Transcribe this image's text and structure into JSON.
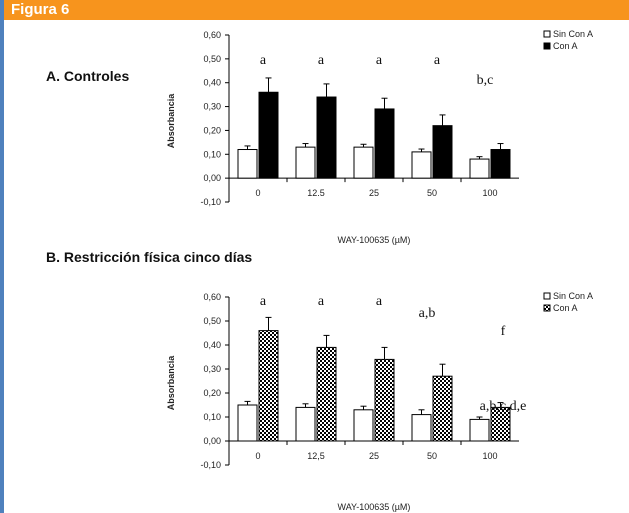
{
  "figure_title": "Figura 6",
  "colors": {
    "header": "#f7941d",
    "frame_border": "#4f81bd",
    "con_a_a": "#000000",
    "con_a_b": "checkerboard",
    "sin_con_a": "#ffffff"
  },
  "chart_data": [
    {
      "type": "bar",
      "title": "A. Controles",
      "xlabel": "WAY-100635 (µM)",
      "ylabel": "Absorbancia",
      "ylim": [
        -0.1,
        0.6
      ],
      "yticks": [
        "-0,10",
        "0,00",
        "0,10",
        "0,20",
        "0,30",
        "0,40",
        "0,50",
        "0,60"
      ],
      "categories": [
        "0",
        "12.5",
        "25",
        "50",
        "100"
      ],
      "series": [
        {
          "name": "Sin Con A",
          "values": [
            0.12,
            0.13,
            0.13,
            0.11,
            0.08
          ],
          "errors": [
            0.015,
            0.015,
            0.012,
            0.012,
            0.01
          ]
        },
        {
          "name": "Con A",
          "values": [
            0.36,
            0.34,
            0.29,
            0.22,
            0.12
          ],
          "errors": [
            0.06,
            0.055,
            0.045,
            0.045,
            0.025
          ]
        }
      ],
      "significance": [
        "a",
        "a",
        "a",
        "a",
        "b,c"
      ],
      "legend": "top-right"
    },
    {
      "type": "bar",
      "title": "B. Restricción física cinco días",
      "xlabel": "WAY-100635 (µM)",
      "ylabel": "Absorbancia",
      "ylim": [
        -0.1,
        0.6
      ],
      "yticks": [
        "-0,10",
        "0,00",
        "0,10",
        "0,20",
        "0,30",
        "0,40",
        "0,50",
        "0,60"
      ],
      "categories": [
        "0",
        "12,5",
        "25",
        "50",
        "100"
      ],
      "series": [
        {
          "name": "Sin Con A",
          "values": [
            0.15,
            0.14,
            0.13,
            0.11,
            0.09
          ],
          "errors": [
            0.015,
            0.015,
            0.015,
            0.02,
            0.01
          ]
        },
        {
          "name": "Con A",
          "values": [
            0.46,
            0.39,
            0.34,
            0.27,
            0.14
          ],
          "errors": [
            0.055,
            0.05,
            0.05,
            0.05,
            0.02
          ]
        }
      ],
      "significance": [
        "a",
        "a",
        "a",
        "a,b",
        "a,b,c,d,e"
      ],
      "extra_label": "f",
      "legend": "top-right"
    }
  ]
}
